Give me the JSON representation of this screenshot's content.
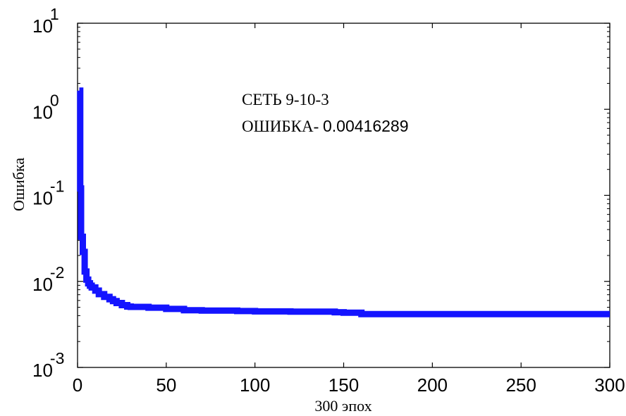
{
  "chart_data": {
    "type": "line",
    "xlabel": "300 эпох",
    "ylabel": "Ошибка",
    "xlim": [
      0,
      300
    ],
    "ylim": [
      0.001,
      10
    ],
    "yscale": "log",
    "grid": false,
    "xticks": [
      0,
      50,
      100,
      150,
      200,
      250,
      300
    ],
    "xtick_labels": [
      "0",
      "50",
      "100",
      "150",
      "200",
      "250",
      "300"
    ],
    "yticks": [
      {
        "value": 10,
        "base": "10",
        "exp": "1"
      },
      {
        "value": 1,
        "base": "10",
        "exp": "0"
      },
      {
        "value": 0.1,
        "base": "10",
        "exp": "-1"
      },
      {
        "value": 0.01,
        "base": "10",
        "exp": "-2"
      },
      {
        "value": 0.001,
        "base": "10",
        "exp": "-3"
      }
    ],
    "annotation": {
      "line1": "СЕТЬ 9-10-3",
      "line2_prefix": "ОШИБКА- ",
      "line2_value": "0.00416289"
    },
    "series": [
      {
        "color": "#1414ff",
        "x": [
          1,
          1.5,
          2,
          3,
          4,
          5,
          6,
          7,
          8,
          10,
          12,
          15,
          18,
          20,
          22,
          25,
          28,
          30,
          40,
          50,
          60,
          70,
          90,
          100,
          120,
          145,
          150,
          160,
          200,
          250,
          300
        ],
        "y": [
          1.65,
          0.12,
          0.033,
          0.022,
          0.013,
          0.0105,
          0.0095,
          0.0089,
          0.0085,
          0.0078,
          0.0071,
          0.0066,
          0.0062,
          0.0059,
          0.0056,
          0.0053,
          0.0051,
          0.00505,
          0.00495,
          0.00478,
          0.00462,
          0.00458,
          0.00452,
          0.00448,
          0.00445,
          0.00438,
          0.00432,
          0.00416289,
          0.00416289,
          0.00416289,
          0.00416289
        ]
      }
    ]
  }
}
